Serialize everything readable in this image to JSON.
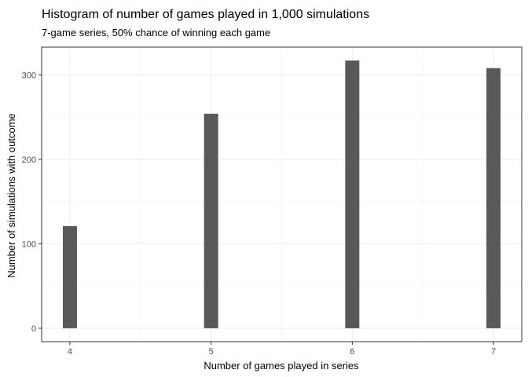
{
  "chart_data": {
    "type": "bar",
    "title": "Histogram of number of games played in 1,000 simulations",
    "subtitle": "7-game series, 50% chance of winning each game",
    "xlabel": "Number of games played in series",
    "ylabel": "Number of simulations with outcome",
    "x": [
      4,
      5,
      6,
      7
    ],
    "values": [
      121,
      254,
      317,
      308
    ],
    "xlim": [
      3.8,
      7.2
    ],
    "ylim": [
      -15.85,
      332.85
    ],
    "x_ticks": [
      4,
      5,
      6,
      7
    ],
    "y_ticks": [
      0,
      100,
      200,
      300
    ],
    "grid": true,
    "legend": "none",
    "colors": {
      "bar": "#595959",
      "panel_border": "#333333",
      "grid": "#ebebeb"
    }
  }
}
